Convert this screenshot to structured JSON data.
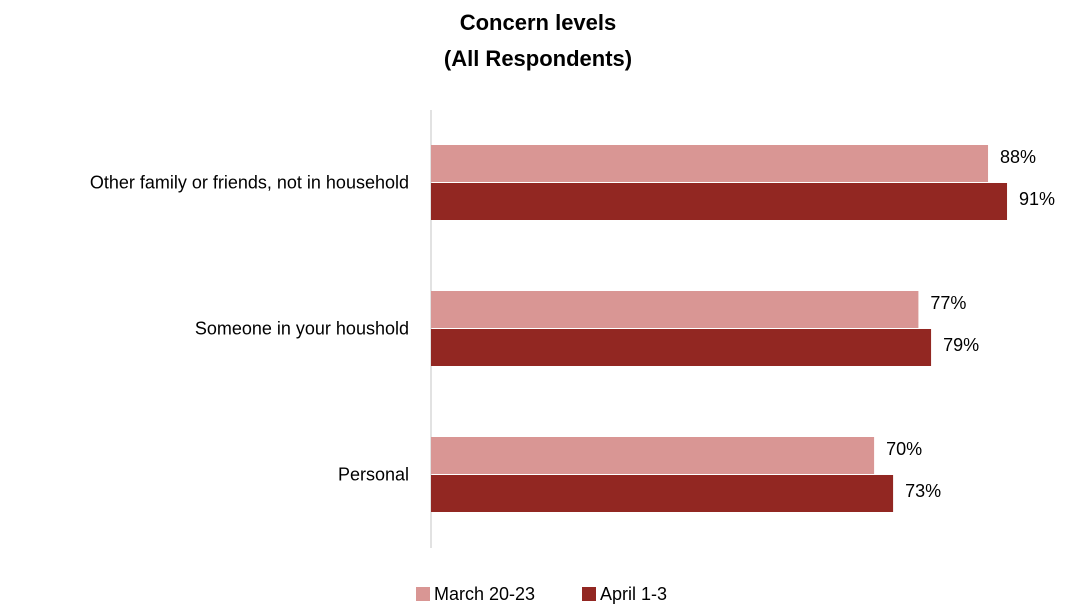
{
  "chart_data": {
    "type": "bar",
    "orientation": "horizontal",
    "title": [
      "Concern levels",
      "(All Respondents)"
    ],
    "categories": [
      "Other family or friends, not in household",
      "Someone in your houshold",
      "Personal"
    ],
    "series": [
      {
        "name": "March 20-23",
        "color": "#d99694",
        "values": [
          88,
          77,
          70
        ],
        "labels": [
          "88%",
          "77%",
          "70%"
        ]
      },
      {
        "name": "April 1-3",
        "color": "#922722",
        "values": [
          91,
          79,
          73
        ],
        "labels": [
          "91%",
          "79%",
          "73%"
        ]
      }
    ],
    "xlim": [
      0,
      100
    ],
    "grid": false,
    "legend_position": "bottom"
  }
}
